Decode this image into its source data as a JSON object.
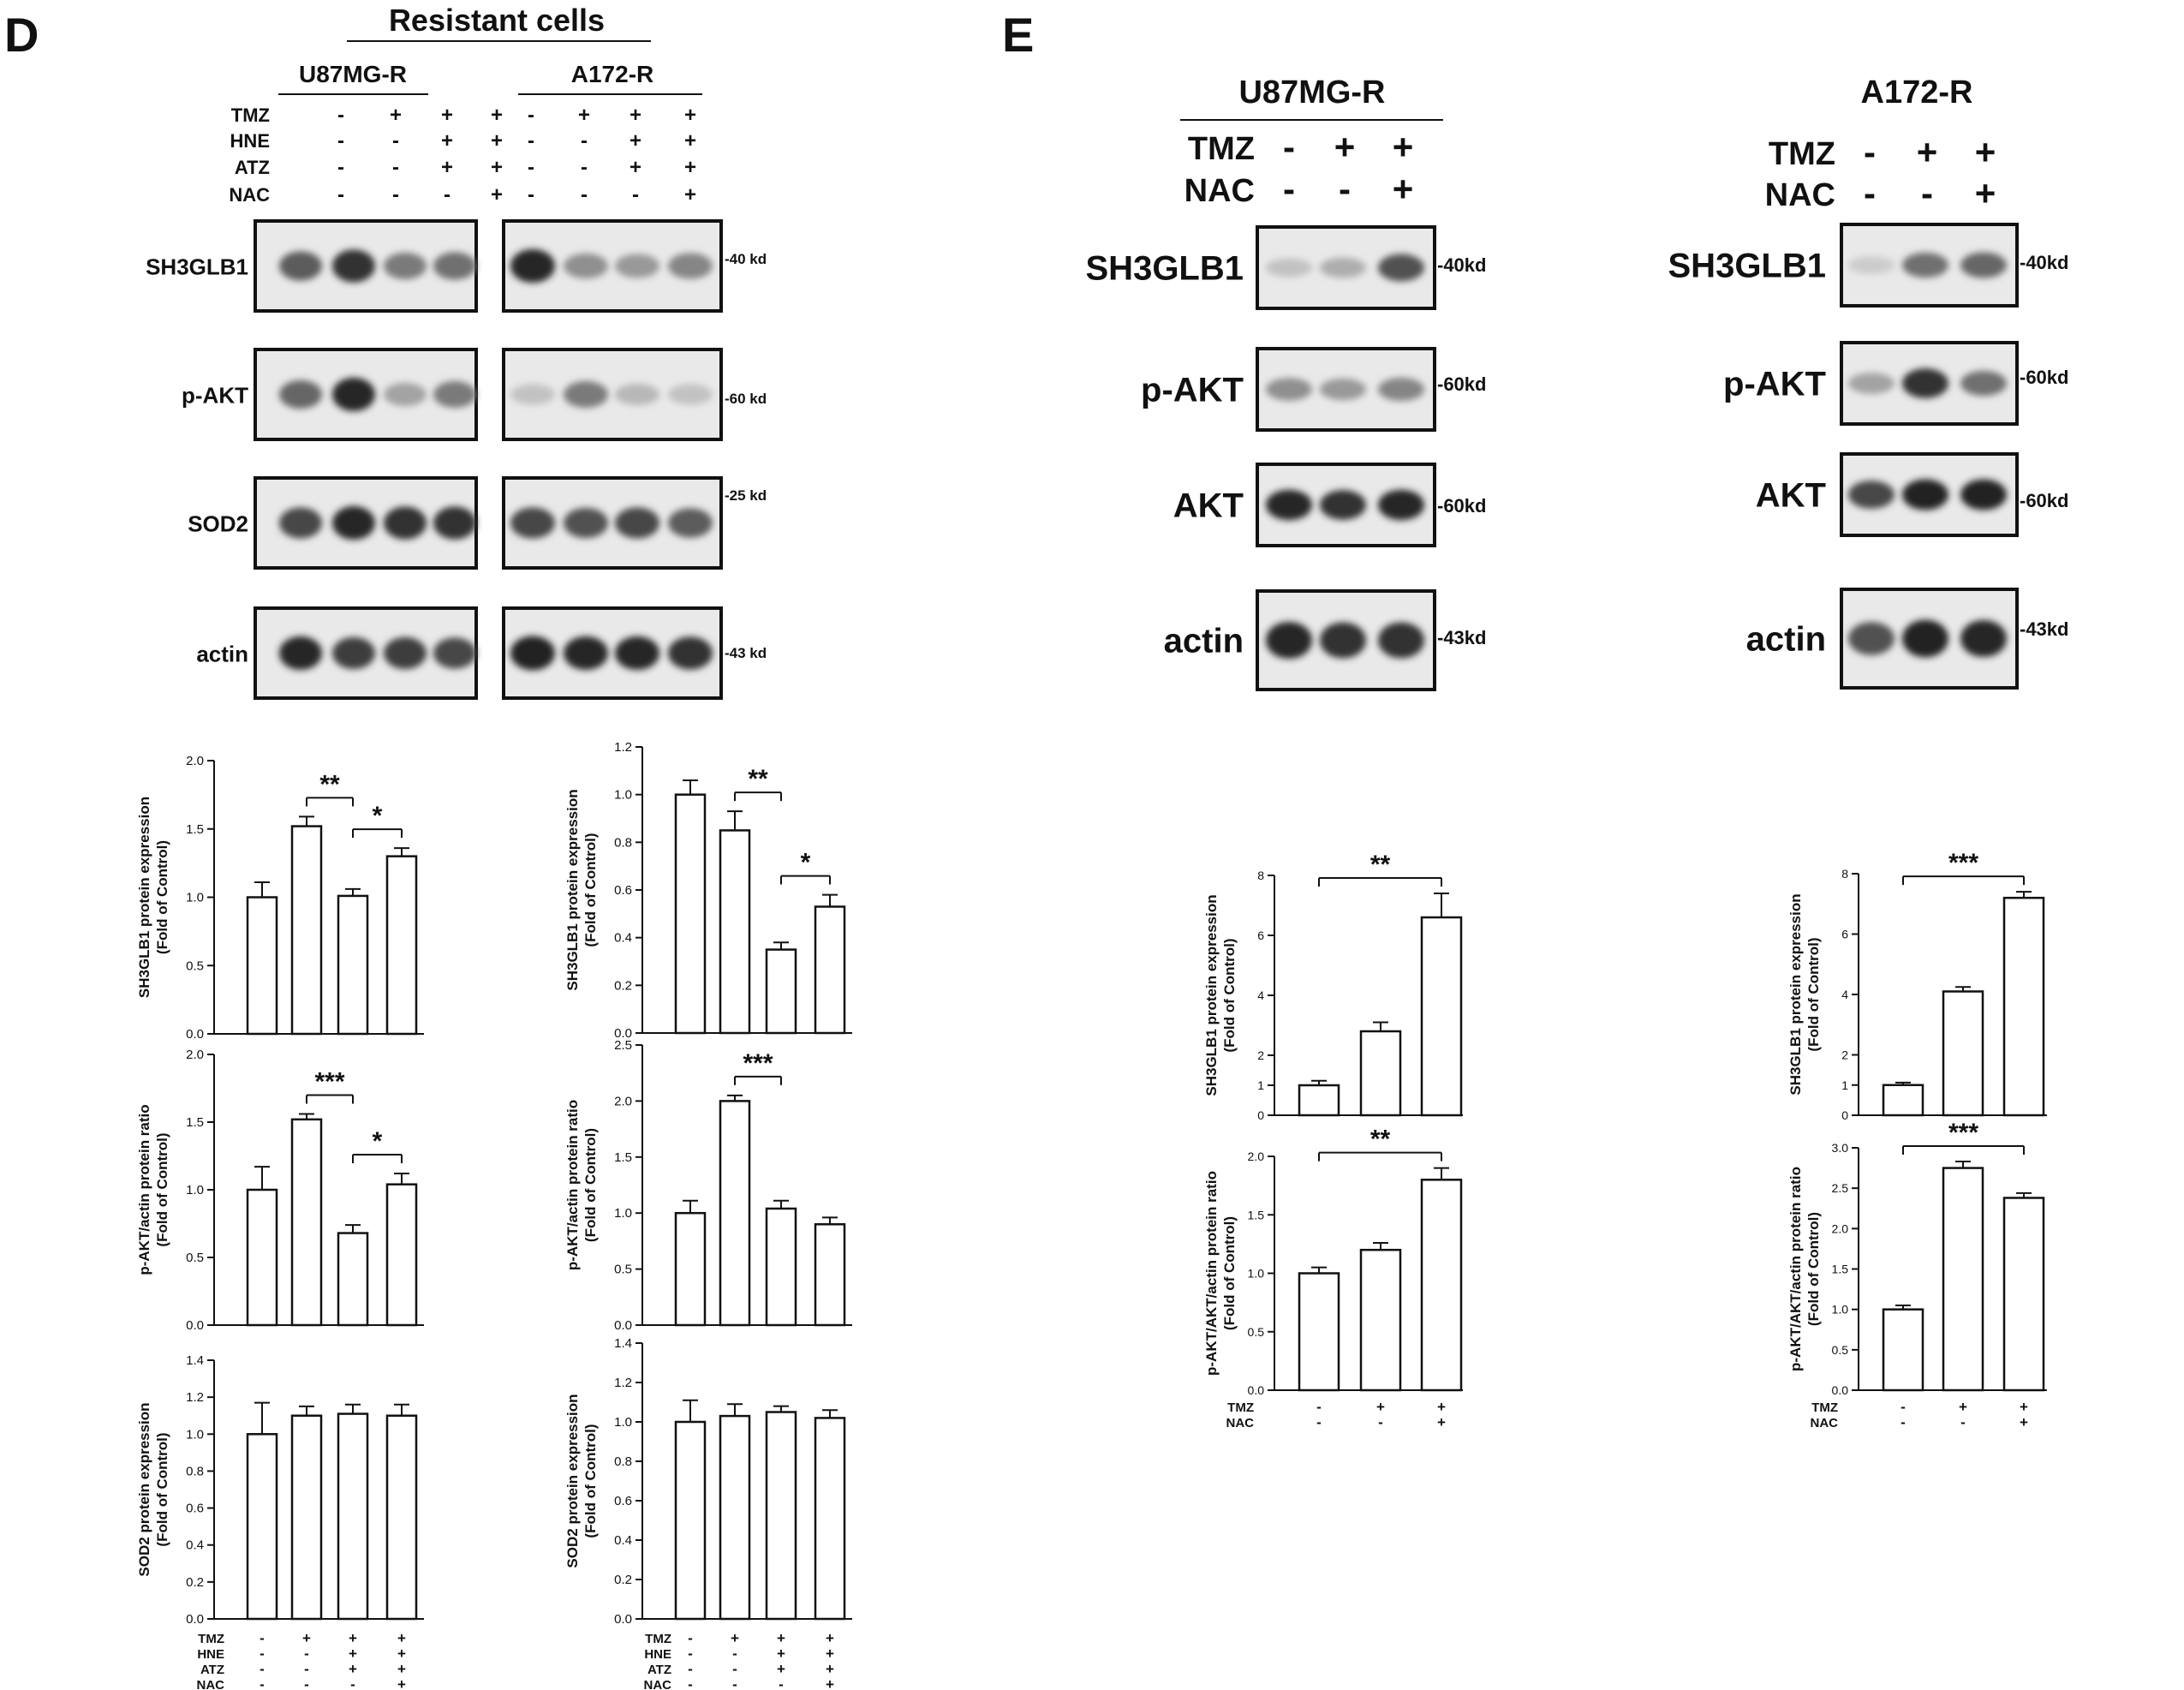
{
  "panel_d": {
    "letter": "D",
    "title": "Resistant cells",
    "blot_groups": [
      "U87MG-R",
      "A172-R"
    ],
    "treatments": [
      {
        "name": "TMZ",
        "signs": [
          "-",
          "+",
          "+",
          "+"
        ]
      },
      {
        "name": "HNE",
        "signs": [
          "-",
          "-",
          "+",
          "+"
        ]
      },
      {
        "name": "ATZ",
        "signs": [
          "-",
          "-",
          "+",
          "+"
        ]
      },
      {
        "name": "NAC",
        "signs": [
          "-",
          "-",
          "-",
          "+"
        ]
      }
    ],
    "blot_rows": [
      "SH3GLB1",
      "p-AKT",
      "SOD2",
      "actin"
    ],
    "markers": [
      "40 kd",
      "60 kd",
      "25 kd",
      "43 kd"
    ],
    "band_intensity": {
      "U87MG-R": [
        [
          0.7,
          0.9,
          0.55,
          0.6
        ],
        [
          0.65,
          0.95,
          0.35,
          0.55
        ],
        [
          0.8,
          0.95,
          0.9,
          0.9
        ],
        [
          0.95,
          0.85,
          0.85,
          0.8
        ]
      ],
      "A172-R": [
        [
          0.95,
          0.45,
          0.4,
          0.5
        ],
        [
          0.2,
          0.55,
          0.25,
          0.2
        ],
        [
          0.8,
          0.75,
          0.8,
          0.7
        ],
        [
          0.98,
          0.95,
          0.95,
          0.9
        ]
      ]
    }
  },
  "panel_e": {
    "letter": "E",
    "blot_groups": [
      "U87MG-R",
      "A172-R"
    ],
    "treatments": [
      {
        "name": "TMZ",
        "signs": [
          "-",
          "+",
          "+"
        ]
      },
      {
        "name": "NAC",
        "signs": [
          "-",
          "-",
          "+"
        ]
      }
    ],
    "blot_rows": [
      "SH3GLB1",
      "p-AKT",
      "AKT",
      "actin"
    ],
    "markers": [
      "40kd",
      "60kd",
      "60kd",
      "43kd"
    ],
    "band_intensity": {
      "U87MG-R": [
        [
          0.2,
          0.3,
          0.75
        ],
        [
          0.45,
          0.4,
          0.5
        ],
        [
          0.95,
          0.9,
          0.95
        ],
        [
          0.95,
          0.9,
          0.9
        ]
      ],
      "A172-R": [
        [
          0.15,
          0.6,
          0.65
        ],
        [
          0.35,
          0.9,
          0.6
        ],
        [
          0.8,
          0.98,
          0.98
        ],
        [
          0.75,
          0.98,
          0.95
        ]
      ]
    }
  },
  "chart_data": [
    {
      "id": "d1",
      "type": "bar",
      "categories": [
        "1",
        "2",
        "3",
        "4"
      ],
      "values": [
        1.0,
        1.52,
        1.01,
        1.3
      ],
      "errors": [
        0.11,
        0.07,
        0.05,
        0.06
      ],
      "ylim": [
        0,
        2.0
      ],
      "yticks": [
        0.0,
        0.5,
        1.0,
        1.5,
        2.0
      ],
      "ylabel": "SH3GLB1 protein expression",
      "ylabel2": "(Fold of Control)",
      "significance": [
        {
          "from": 1,
          "to": 2,
          "label": "**"
        },
        {
          "from": 2,
          "to": 3,
          "label": "*"
        }
      ]
    },
    {
      "id": "d2",
      "type": "bar",
      "categories": [
        "1",
        "2",
        "3",
        "4"
      ],
      "values": [
        1.0,
        1.52,
        0.68,
        1.04
      ],
      "errors": [
        0.17,
        0.04,
        0.06,
        0.08
      ],
      "ylim": [
        0,
        2.0
      ],
      "yticks": [
        0.0,
        0.5,
        1.0,
        1.5,
        2.0
      ],
      "ylabel": "p-AKT/actin protein ratio",
      "ylabel2": "(Fold of Control)",
      "significance": [
        {
          "from": 1,
          "to": 2,
          "label": "***"
        },
        {
          "from": 2,
          "to": 3,
          "label": "*"
        }
      ]
    },
    {
      "id": "d3",
      "type": "bar",
      "categories": [
        "1",
        "2",
        "3",
        "4"
      ],
      "values": [
        1.0,
        1.1,
        1.11,
        1.1
      ],
      "errors": [
        0.17,
        0.05,
        0.05,
        0.06
      ],
      "ylim": [
        0,
        1.4
      ],
      "yticks": [
        0.0,
        0.2,
        0.4,
        0.6,
        0.8,
        1.0,
        1.2,
        1.4
      ],
      "ylabel": "SOD2 protein expression",
      "ylabel2": "(Fold of Control)",
      "significance": []
    },
    {
      "id": "d4",
      "type": "bar",
      "categories": [
        "1",
        "2",
        "3",
        "4"
      ],
      "values": [
        1.0,
        0.85,
        0.35,
        0.53
      ],
      "errors": [
        0.06,
        0.08,
        0.03,
        0.05
      ],
      "ylim": [
        0,
        1.2
      ],
      "yticks": [
        0.0,
        0.2,
        0.4,
        0.6,
        0.8,
        1.0,
        1.2
      ],
      "ylabel": "SH3GLB1 protein expression",
      "ylabel2": "(Fold of Control)",
      "significance": [
        {
          "from": 1,
          "to": 2,
          "label": "**"
        },
        {
          "from": 2,
          "to": 3,
          "label": "*"
        }
      ]
    },
    {
      "id": "d5",
      "type": "bar",
      "categories": [
        "1",
        "2",
        "3",
        "4"
      ],
      "values": [
        1.0,
        2.0,
        1.04,
        0.9
      ],
      "errors": [
        0.11,
        0.05,
        0.07,
        0.06
      ],
      "ylim": [
        0,
        2.5
      ],
      "yticks": [
        0.0,
        0.5,
        1.0,
        1.5,
        2.0,
        2.5
      ],
      "ylabel": "p-AKT/actin protein ratio",
      "ylabel2": "(Fold of Control)",
      "significance": [
        {
          "from": 1,
          "to": 2,
          "label": "***"
        }
      ]
    },
    {
      "id": "d6",
      "type": "bar",
      "categories": [
        "1",
        "2",
        "3",
        "4"
      ],
      "values": [
        1.0,
        1.03,
        1.05,
        1.02
      ],
      "errors": [
        0.11,
        0.06,
        0.03,
        0.04
      ],
      "ylim": [
        0,
        1.4
      ],
      "yticks": [
        0.0,
        0.2,
        0.4,
        0.6,
        0.8,
        1.0,
        1.2,
        1.4
      ],
      "ylabel": "SOD2 protein expression",
      "ylabel2": "(Fold of Control)",
      "significance": []
    },
    {
      "id": "e1",
      "type": "bar",
      "categories": [
        "1",
        "2",
        "3"
      ],
      "values": [
        1.0,
        2.8,
        6.6
      ],
      "errors": [
        0.15,
        0.3,
        0.8
      ],
      "ylim": [
        0,
        8
      ],
      "yticks": [
        0,
        1,
        2,
        4,
        6,
        8
      ],
      "ylabel": "SH3GLB1 protein expression",
      "ylabel2": "(Fold of Control)",
      "significance": [
        {
          "from": 0,
          "to": 2,
          "label": "**"
        }
      ]
    },
    {
      "id": "e2",
      "type": "bar",
      "categories": [
        "1",
        "2",
        "3"
      ],
      "values": [
        1.0,
        1.2,
        1.8
      ],
      "errors": [
        0.05,
        0.06,
        0.1
      ],
      "ylim": [
        0,
        2.0
      ],
      "yticks": [
        0,
        0.5,
        1.0,
        1.5,
        2.0
      ],
      "ylabel": "p-AKT/AKT/actin protein ratio",
      "ylabel2": "(Fold of Control)",
      "significance": [
        {
          "from": 0,
          "to": 2,
          "label": "**"
        }
      ]
    },
    {
      "id": "e3",
      "type": "bar",
      "categories": [
        "1",
        "2",
        "3"
      ],
      "values": [
        1.0,
        4.1,
        7.2
      ],
      "errors": [
        0.08,
        0.15,
        0.2
      ],
      "ylim": [
        0,
        8
      ],
      "yticks": [
        0,
        1,
        2,
        4,
        6,
        8
      ],
      "ylabel": "SH3GLB1 protein expression",
      "ylabel2": "(Fold of Control)",
      "significance": [
        {
          "from": 0,
          "to": 2,
          "label": "***"
        }
      ]
    },
    {
      "id": "e4",
      "type": "bar",
      "categories": [
        "1",
        "2",
        "3"
      ],
      "values": [
        1.0,
        2.75,
        2.38
      ],
      "errors": [
        0.05,
        0.08,
        0.06
      ],
      "ylim": [
        0,
        3.0
      ],
      "yticks": [
        0.0,
        0.5,
        1.0,
        1.5,
        2.0,
        2.5,
        3.0
      ],
      "ylabel": "p-AKT/AKT/actin protein ratio",
      "ylabel2": "(Fold of Control)",
      "significance": [
        {
          "from": 0,
          "to": 2,
          "label": "***"
        }
      ]
    }
  ]
}
